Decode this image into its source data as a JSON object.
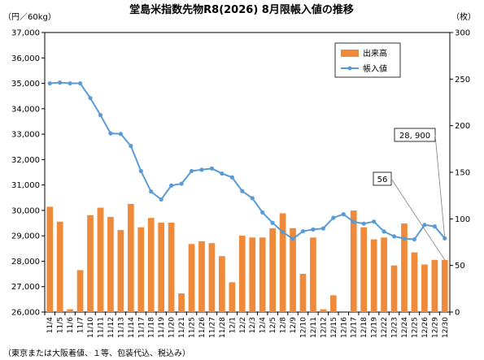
{
  "chart_data": {
    "type": "bar+line",
    "title": "堂島米指数先物R8(2026) 8月限帳入値の推移",
    "ylabel_left": "（円／60kg）",
    "ylabel_right": "（枚）",
    "note": "（東京または大阪着値、１等、包装代込、税込み）",
    "ylim_left": [
      26000,
      37000
    ],
    "ylim_right": [
      0,
      300
    ],
    "yticks_left": [
      "26,000",
      "27,000",
      "28,000",
      "29,000",
      "30,000",
      "31,000",
      "32,000",
      "33,000",
      "34,000",
      "35,000",
      "36,000",
      "37,000"
    ],
    "yticks_right": [
      "0",
      "50",
      "100",
      "150",
      "200",
      "250",
      "300"
    ],
    "categories": [
      "11/4",
      "11/5",
      "11/6",
      "11/7",
      "11/10",
      "11/11",
      "11/12",
      "11/13",
      "11/14",
      "11/17",
      "11/18",
      "11/19",
      "11/20",
      "11/21",
      "11/25",
      "11/26",
      "11/27",
      "11/28",
      "12/1",
      "12/2",
      "12/3",
      "12/4",
      "12/5",
      "12/8",
      "12/9",
      "12/10",
      "12/11",
      "12/12",
      "12/15",
      "12/16",
      "12/17",
      "12/18",
      "12/19",
      "12/22",
      "12/23",
      "12/24",
      "12/25",
      "12/26",
      "12/29",
      "12/30"
    ],
    "series": [
      {
        "name": "出来高",
        "axis": "right",
        "type": "bar",
        "color": "#ee8a3a",
        "values": [
          113,
          97,
          3,
          45,
          104,
          112,
          102,
          88,
          116,
          91,
          101,
          96,
          96,
          20,
          73,
          76,
          74,
          60,
          32,
          82,
          80,
          80,
          90,
          106,
          90,
          41,
          80,
          3,
          18,
          0,
          109,
          91,
          78,
          80,
          50,
          95,
          64,
          51,
          56,
          56
        ]
      },
      {
        "name": "帳入値",
        "axis": "left",
        "type": "line",
        "color": "#5b9bd5",
        "values": [
          35000,
          35030,
          35000,
          35000,
          34420,
          33750,
          33030,
          33010,
          32540,
          31550,
          30740,
          30430,
          30980,
          31050,
          31550,
          31600,
          31650,
          31450,
          31300,
          30760,
          30480,
          29920,
          29510,
          29150,
          28880,
          29180,
          29250,
          29290,
          29710,
          29850,
          29550,
          29480,
          29560,
          29170,
          28980,
          28890,
          28860,
          29430,
          29370,
          28900
        ]
      }
    ],
    "legend_position": "top-right",
    "callouts": [
      {
        "label": "28, 900",
        "series": "帳入値",
        "index": 39
      },
      {
        "label": "56",
        "series": "出来高",
        "index": 39
      }
    ],
    "grid": false
  }
}
